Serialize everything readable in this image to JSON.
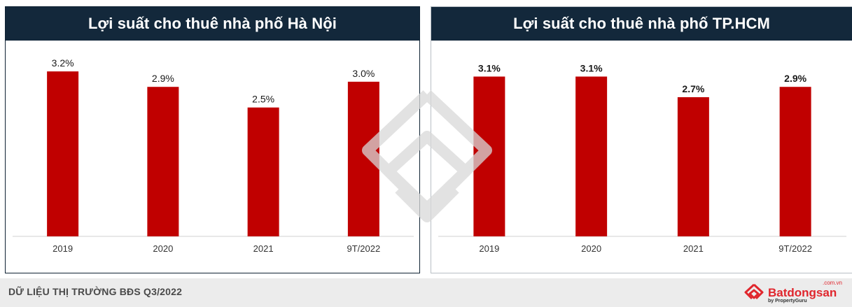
{
  "footer": {
    "text": "DỮ LIỆU THỊ TRƯỜNG BĐS Q3/2022",
    "brand": "Batdongsan",
    "brand_domain": ".com.vn",
    "brand_sub": "by PropertyGuru"
  },
  "colors": {
    "bar": "#c00000",
    "header_bg": "#13283b",
    "brand": "#e0262d"
  },
  "chart_data": [
    {
      "type": "bar",
      "title": "Lợi suất cho thuê nhà phố Hà Nội",
      "categories": [
        "2019",
        "2020",
        "2021",
        "9T/2022"
      ],
      "values": [
        3.2,
        2.9,
        2.5,
        3.0
      ],
      "labels": [
        "3.2%",
        "2.9%",
        "2.5%",
        "3.0%"
      ],
      "label_bold": false,
      "ylim": [
        0,
        3.5
      ],
      "grid": false
    },
    {
      "type": "bar",
      "title": "Lợi suất cho thuê nhà phố TP.HCM",
      "categories": [
        "2019",
        "2020",
        "2021",
        "9T/2022"
      ],
      "values": [
        3.1,
        3.1,
        2.7,
        2.9
      ],
      "labels": [
        "3.1%",
        "3.1%",
        "2.7%",
        "2.9%"
      ],
      "label_bold": true,
      "ylim": [
        0,
        3.5
      ],
      "grid": false
    }
  ]
}
